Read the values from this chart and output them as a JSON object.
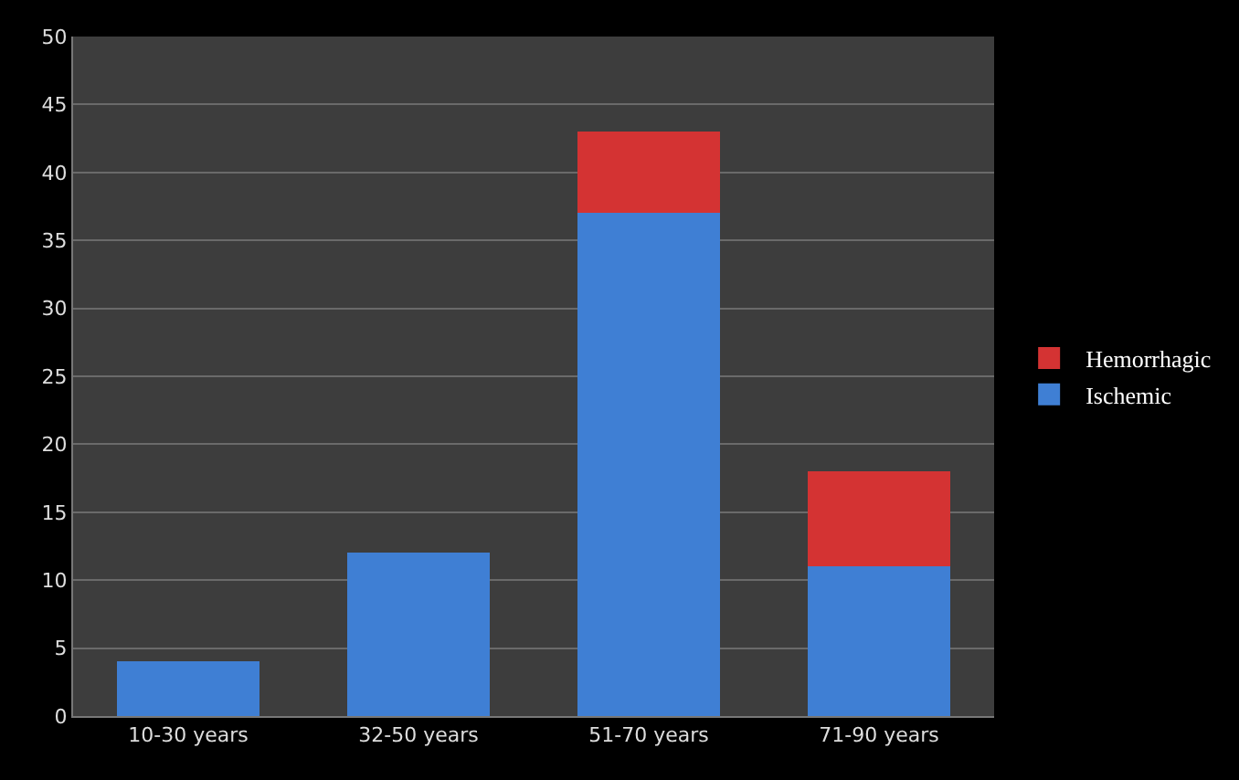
{
  "chart_data": {
    "type": "bar",
    "stacked": true,
    "categories": [
      "10-30 years",
      "32-50 years",
      "51-70 years",
      "71-90 years"
    ],
    "series": [
      {
        "name": "Ischemic",
        "color": "#3f7fd4",
        "values": [
          4,
          12,
          37,
          11
        ]
      },
      {
        "name": "Hemorrhagic",
        "color": "#d43333",
        "values": [
          0,
          0,
          6,
          7
        ]
      }
    ],
    "ylim": [
      0,
      50
    ],
    "yticks": [
      0,
      5,
      10,
      15,
      20,
      25,
      30,
      35,
      40,
      45,
      50
    ],
    "grid": "y",
    "legend": "right"
  }
}
